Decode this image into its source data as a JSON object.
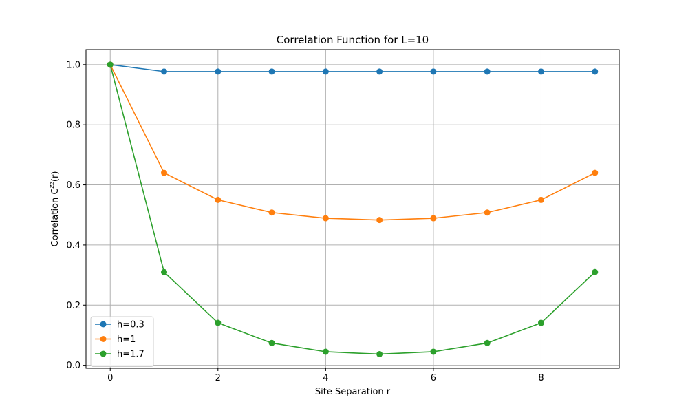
{
  "chart_data": {
    "type": "line",
    "title": "Correlation Function for L=10",
    "xlabel": "Site Separation r",
    "ylabel_prefix": "Correlation C",
    "ylabel_sup": "zz",
    "ylabel_suffix": "(r)",
    "x": [
      0,
      1,
      2,
      3,
      4,
      5,
      6,
      7,
      8,
      9
    ],
    "xlim": [
      -0.45,
      9.45
    ],
    "ylim": [
      -0.01,
      1.05
    ],
    "xticks": [
      0,
      2,
      4,
      6,
      8
    ],
    "yticks": [
      0.0,
      0.2,
      0.4,
      0.6,
      0.8,
      1.0
    ],
    "xtick_labels": [
      "0",
      "2",
      "4",
      "6",
      "8"
    ],
    "ytick_labels": [
      "0.0",
      "0.2",
      "0.4",
      "0.6",
      "0.8",
      "1.0"
    ],
    "grid": true,
    "legend_position": "lower-left",
    "series": [
      {
        "name": "h=0.3",
        "color": "#1f77b4",
        "values": [
          1.0,
          0.977,
          0.977,
          0.977,
          0.977,
          0.977,
          0.977,
          0.977,
          0.977,
          0.977
        ]
      },
      {
        "name": "h=1",
        "color": "#ff7f0e",
        "values": [
          1.0,
          0.64,
          0.55,
          0.508,
          0.489,
          0.483,
          0.489,
          0.508,
          0.55,
          0.64
        ]
      },
      {
        "name": "h=1.7",
        "color": "#2ca02c",
        "values": [
          1.0,
          0.31,
          0.141,
          0.074,
          0.045,
          0.037,
          0.045,
          0.074,
          0.141,
          0.31
        ]
      }
    ]
  }
}
